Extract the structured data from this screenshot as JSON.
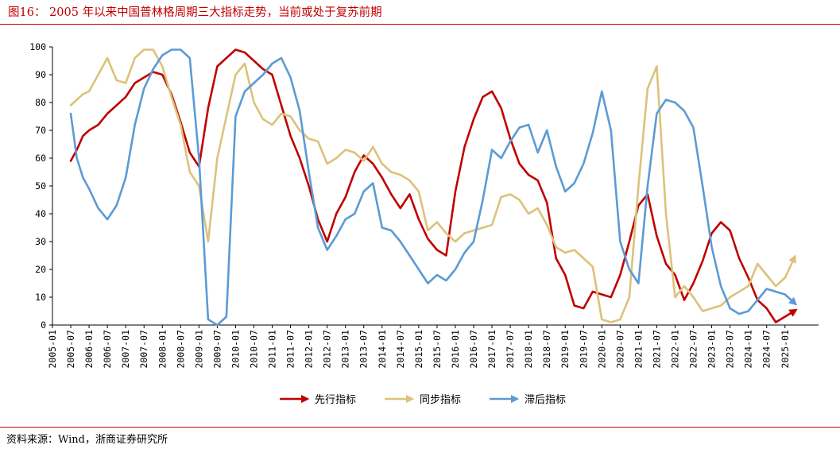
{
  "header": {
    "title": "图16：  2005 年以来中国普林格周期三大指标走势，当前或处于复苏前期"
  },
  "footer": {
    "source": "资料来源：Wind，浙商证券研究所"
  },
  "chart_data": {
    "type": "line",
    "title": "图16：  2005 年以来中国普林格周期三大指标走势，当前或处于复苏前期",
    "xlabel": "",
    "ylabel": "",
    "ylim": [
      0,
      100
    ],
    "yticks": [
      0,
      10,
      20,
      30,
      40,
      50,
      60,
      70,
      80,
      90,
      100
    ],
    "xticks": [
      "2005-01",
      "2005-07",
      "2006-01",
      "2006-07",
      "2007-01",
      "2007-07",
      "2008-01",
      "2008-07",
      "2009-01",
      "2009-07",
      "2010-01",
      "2010-07",
      "2011-01",
      "2011-07",
      "2012-01",
      "2012-07",
      "2013-01",
      "2013-07",
      "2014-01",
      "2014-07",
      "2015-01",
      "2015-07",
      "2016-01",
      "2016-07",
      "2017-01",
      "2017-07",
      "2018-01",
      "2018-07",
      "2019-01",
      "2019-07",
      "2020-01",
      "2020-07",
      "2021-01",
      "2021-07",
      "2022-01",
      "2022-07",
      "2023-01",
      "2023-07",
      "2024-01",
      "2024-07",
      "2025-01"
    ],
    "grid": false,
    "legend": "bottom-center",
    "series": [
      {
        "name": "先行指标",
        "color": "#c00000",
        "x": [
          "2005-07",
          "2005-09",
          "2005-11",
          "2006-01",
          "2006-04",
          "2006-07",
          "2006-10",
          "2007-01",
          "2007-04",
          "2007-07",
          "2007-10",
          "2008-01",
          "2008-04",
          "2008-07",
          "2008-10",
          "2009-01",
          "2009-04",
          "2009-07",
          "2009-10",
          "2010-01",
          "2010-04",
          "2010-07",
          "2010-10",
          "2011-01",
          "2011-04",
          "2011-07",
          "2011-10",
          "2012-01",
          "2012-04",
          "2012-07",
          "2012-10",
          "2013-01",
          "2013-04",
          "2013-07",
          "2013-10",
          "2014-01",
          "2014-04",
          "2014-07",
          "2014-10",
          "2015-01",
          "2015-04",
          "2015-07",
          "2015-10",
          "2016-01",
          "2016-04",
          "2016-07",
          "2016-10",
          "2017-01",
          "2017-04",
          "2017-07",
          "2017-10",
          "2018-01",
          "2018-04",
          "2018-07",
          "2018-10",
          "2019-01",
          "2019-04",
          "2019-07",
          "2019-10",
          "2020-01",
          "2020-04",
          "2020-07",
          "2020-10",
          "2021-01",
          "2021-04",
          "2021-07",
          "2021-10",
          "2022-01",
          "2022-04",
          "2022-07",
          "2022-10",
          "2023-01",
          "2023-04",
          "2023-07",
          "2023-10",
          "2024-01",
          "2024-04",
          "2024-07",
          "2024-10",
          "2025-01",
          "2025-04"
        ],
        "values": [
          59,
          63,
          68,
          70,
          72,
          76,
          79,
          82,
          87,
          89,
          91,
          90,
          83,
          73,
          62,
          57,
          78,
          93,
          96,
          99,
          98,
          95,
          92,
          90,
          79,
          68,
          60,
          50,
          38,
          30,
          40,
          46,
          55,
          61,
          58,
          53,
          47,
          42,
          47,
          38,
          31,
          27,
          25,
          48,
          64,
          74,
          82,
          84,
          78,
          67,
          58,
          54,
          52,
          44,
          24,
          18,
          7,
          6,
          12,
          11,
          10,
          18,
          30,
          43,
          47,
          32,
          22,
          18,
          9,
          15,
          23,
          33,
          37,
          34,
          24,
          17,
          9,
          6,
          1,
          3,
          5
        ]
      },
      {
        "name": "同步指标",
        "color": "#dcc27a",
        "x": [
          "2005-07",
          "2005-09",
          "2005-11",
          "2006-01",
          "2006-04",
          "2006-07",
          "2006-10",
          "2007-01",
          "2007-04",
          "2007-07",
          "2007-10",
          "2008-01",
          "2008-04",
          "2008-07",
          "2008-10",
          "2009-01",
          "2009-04",
          "2009-07",
          "2009-10",
          "2010-01",
          "2010-04",
          "2010-07",
          "2010-10",
          "2011-01",
          "2011-04",
          "2011-07",
          "2011-10",
          "2012-01",
          "2012-04",
          "2012-07",
          "2012-10",
          "2013-01",
          "2013-04",
          "2013-07",
          "2013-10",
          "2014-01",
          "2014-04",
          "2014-07",
          "2014-10",
          "2015-01",
          "2015-04",
          "2015-07",
          "2015-10",
          "2016-01",
          "2016-04",
          "2016-07",
          "2016-10",
          "2017-01",
          "2017-04",
          "2017-07",
          "2017-10",
          "2018-01",
          "2018-04",
          "2018-07",
          "2018-10",
          "2019-01",
          "2019-04",
          "2019-07",
          "2019-10",
          "2020-01",
          "2020-04",
          "2020-07",
          "2020-10",
          "2021-01",
          "2021-04",
          "2021-07",
          "2021-10",
          "2022-01",
          "2022-04",
          "2022-07",
          "2022-10",
          "2023-01",
          "2023-04",
          "2023-07",
          "2023-10",
          "2024-01",
          "2024-04",
          "2024-07",
          "2024-10",
          "2025-01",
          "2025-04"
        ],
        "values": [
          79,
          81,
          83,
          84,
          90,
          96,
          88,
          87,
          96,
          99,
          99,
          93,
          82,
          72,
          55,
          50,
          30,
          60,
          75,
          90,
          94,
          80,
          74,
          72,
          76,
          75,
          70,
          67,
          66,
          58,
          60,
          63,
          62,
          59,
          64,
          58,
          55,
          54,
          52,
          48,
          34,
          37,
          33,
          30,
          33,
          34,
          35,
          36,
          46,
          47,
          45,
          40,
          42,
          36,
          28,
          26,
          27,
          24,
          21,
          2,
          1,
          2,
          10,
          50,
          85,
          93,
          40,
          10,
          14,
          10,
          5,
          6,
          7,
          10,
          12,
          14,
          22,
          18,
          14,
          17,
          24
        ]
      },
      {
        "name": "滞后指标",
        "color": "#5b9bd5",
        "x": [
          "2005-07",
          "2005-09",
          "2005-11",
          "2006-01",
          "2006-04",
          "2006-07",
          "2006-10",
          "2007-01",
          "2007-04",
          "2007-07",
          "2007-10",
          "2008-01",
          "2008-04",
          "2008-07",
          "2008-10",
          "2009-01",
          "2009-04",
          "2009-07",
          "2009-10",
          "2010-01",
          "2010-04",
          "2010-07",
          "2010-10",
          "2011-01",
          "2011-04",
          "2011-07",
          "2011-10",
          "2012-01",
          "2012-04",
          "2012-07",
          "2012-10",
          "2013-01",
          "2013-04",
          "2013-07",
          "2013-10",
          "2014-01",
          "2014-04",
          "2014-07",
          "2014-10",
          "2015-01",
          "2015-04",
          "2015-07",
          "2015-10",
          "2016-01",
          "2016-04",
          "2016-07",
          "2016-10",
          "2017-01",
          "2017-04",
          "2017-07",
          "2017-10",
          "2018-01",
          "2018-04",
          "2018-07",
          "2018-10",
          "2019-01",
          "2019-04",
          "2019-07",
          "2019-10",
          "2020-01",
          "2020-04",
          "2020-07",
          "2020-10",
          "2021-01",
          "2021-04",
          "2021-07",
          "2021-10",
          "2022-01",
          "2022-04",
          "2022-07",
          "2022-10",
          "2023-01",
          "2023-04",
          "2023-07",
          "2023-10",
          "2024-01",
          "2024-04",
          "2024-07",
          "2024-10",
          "2025-01",
          "2025-04"
        ],
        "values": [
          76,
          60,
          53,
          49,
          42,
          38,
          43,
          53,
          72,
          85,
          92,
          97,
          99,
          99,
          96,
          60,
          2,
          0,
          3,
          75,
          84,
          87,
          90,
          94,
          96,
          89,
          77,
          55,
          35,
          27,
          32,
          38,
          40,
          48,
          51,
          35,
          34,
          30,
          25,
          20,
          15,
          18,
          16,
          20,
          26,
          30,
          45,
          63,
          60,
          66,
          71,
          72,
          62,
          70,
          57,
          48,
          51,
          58,
          69,
          84,
          70,
          30,
          20,
          15,
          50,
          76,
          81,
          80,
          77,
          71,
          50,
          28,
          14,
          6,
          4,
          5,
          9,
          13,
          12,
          11,
          8
        ]
      }
    ]
  }
}
